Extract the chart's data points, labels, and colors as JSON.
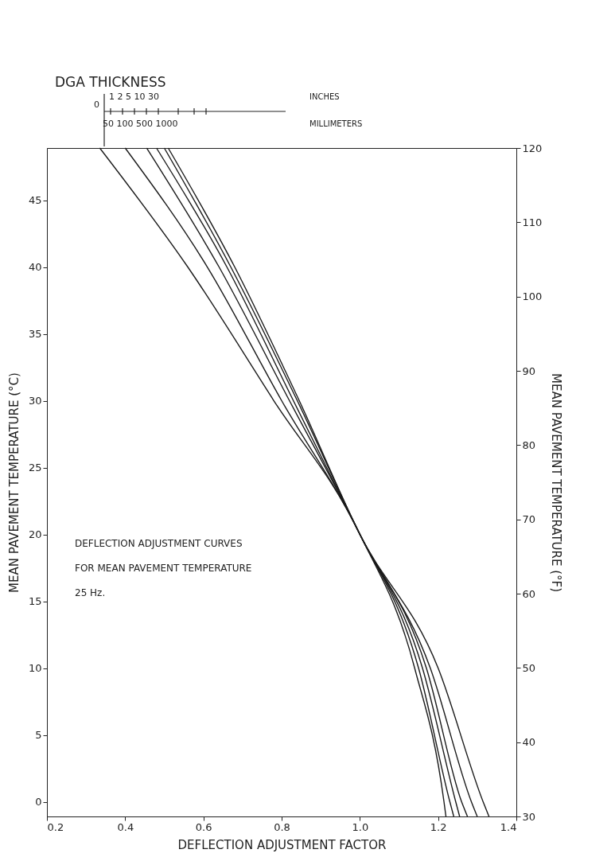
{
  "chart_data": {
    "type": "line",
    "xlabel": "DEFLECTION ADJUSTMENT FACTOR",
    "ylabel": "MEAN PAVEMENT TEMPERATURE (°C)",
    "y2label": "MEAN PAVEMENT TEMPERATURE (°F)",
    "xlim": [
      0.2,
      1.4
    ],
    "xticks": [
      0.2,
      0.4,
      0.6,
      0.8,
      {
        "value": 1,
        "label": "1.0"
      },
      1.2,
      1.4
    ],
    "ylim": [
      -1.1,
      48.9
    ],
    "yticks": [
      0,
      5,
      10,
      15,
      20,
      25,
      30,
      35,
      40,
      45
    ],
    "y2lim": [
      30,
      120
    ],
    "y2ticks": [
      30,
      40,
      50,
      60,
      70,
      80,
      90,
      100,
      110,
      120
    ],
    "grid": false,
    "annotations": [
      "DGA THICKNESS",
      "0",
      "1  2  5 10  30",
      "INCHES",
      "50 100 500 1000",
      "MILLIMETERS",
      "DEFLECTION ADJUSTMENT CURVES",
      "FOR MEAN PAVEMENT TEMPERATURE",
      "25 Hz."
    ],
    "series": [
      {
        "color": "#1a1a1a",
        "x": [
          0.335,
          0.56,
          0.78,
          1.0,
          1.14,
          1.215,
          1.22
        ],
        "values": [
          48.9,
          40,
          30,
          20,
          10,
          0,
          -1.1
        ]
      },
      {
        "color": "#1a1a1a",
        "x": [
          0.4,
          0.61,
          0.8,
          1.0,
          1.15,
          1.23,
          1.24
        ],
        "values": [
          48.9,
          40,
          30,
          20,
          10,
          0,
          -1.1
        ]
      },
      {
        "color": "#1a1a1a",
        "x": [
          0.455,
          0.64,
          0.82,
          1.0,
          1.16,
          1.245,
          1.255
        ],
        "values": [
          48.9,
          40,
          30,
          20,
          10,
          0,
          -1.1
        ]
      },
      {
        "color": "#1a1a1a",
        "x": [
          0.48,
          0.66,
          0.83,
          1.0,
          1.17,
          1.26,
          1.275
        ],
        "values": [
          48.9,
          40,
          30,
          20,
          10,
          0,
          -1.1
        ]
      },
      {
        "color": "#1a1a1a",
        "x": [
          0.5,
          0.67,
          0.84,
          1.0,
          1.18,
          1.285,
          1.3
        ],
        "values": [
          48.9,
          40,
          30,
          20,
          10,
          0,
          -1.1
        ]
      },
      {
        "color": "#1a1a1a",
        "x": [
          0.51,
          0.68,
          0.845,
          1.0,
          1.2,
          1.315,
          1.33
        ],
        "values": [
          48.9,
          40,
          30,
          20,
          10,
          0,
          -1.1
        ]
      }
    ]
  }
}
